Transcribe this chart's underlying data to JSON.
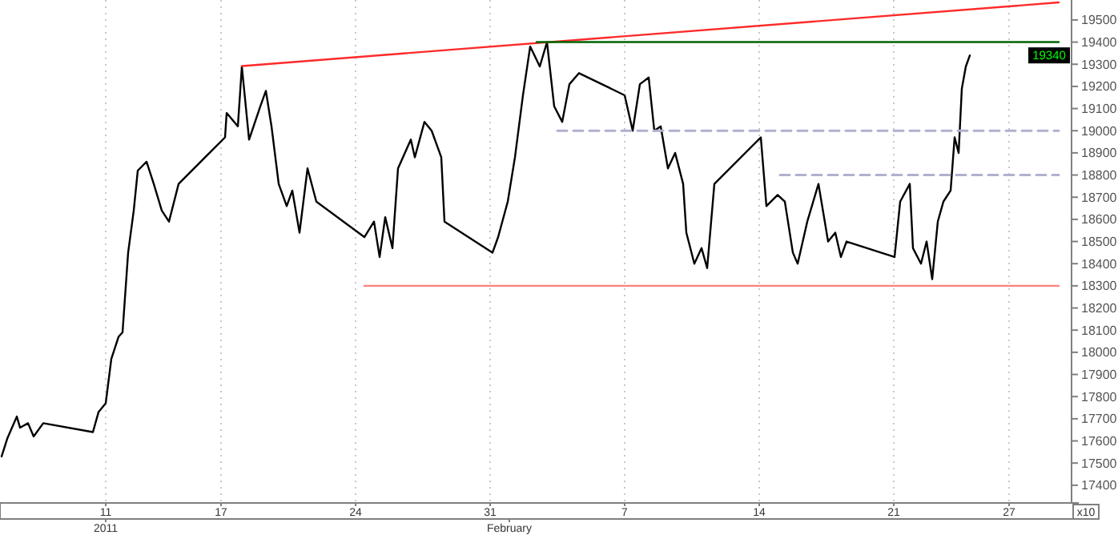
{
  "chart_data": {
    "type": "line",
    "xlim": [
      "2011-01-05T12:00",
      "2011-03-02T06:00"
    ],
    "ylim": [
      17320,
      19590
    ],
    "xticks": [
      {
        "value": "2011-01-11",
        "label": "11"
      },
      {
        "value": "2011-01-17",
        "label": "17"
      },
      {
        "value": "2011-01-24",
        "label": "24"
      },
      {
        "value": "2011-01-31",
        "label": "31"
      },
      {
        "value": "2011-02-07",
        "label": "7"
      },
      {
        "value": "2011-02-14",
        "label": "14"
      },
      {
        "value": "2011-02-21",
        "label": "21"
      },
      {
        "value": "2011-02-27",
        "label": "27"
      }
    ],
    "x2lim": [
      "2011-01-05T12:00",
      "2011-03-02T06:00"
    ],
    "x2ticks": [
      {
        "value": "2011-01-11",
        "label": "2011"
      },
      {
        "value": "2011-02-01",
        "label": "February"
      }
    ],
    "yticks": [
      17400,
      17500,
      17600,
      17700,
      17800,
      17900,
      18000,
      18100,
      18200,
      18300,
      18400,
      18500,
      18600,
      18700,
      18800,
      18900,
      19000,
      19100,
      19200,
      19300,
      19400,
      19500
    ],
    "grid": "x",
    "series": [
      {
        "color": "#000000",
        "x": [
          "2011-01-05T14:00",
          "2011-01-05T21:00",
          "2011-01-06T09:00",
          "2011-01-06T13:00",
          "2011-01-06T23:00",
          "2011-01-07T06:00",
          "2011-01-07T18:00",
          "2011-01-10T08:00",
          "2011-01-10T15:00",
          "2011-01-11T00:00",
          "2011-01-11T07:00",
          "2011-01-11T16:00",
          "2011-01-11T21:00",
          "2011-01-12T04:00",
          "2011-01-12T11:00",
          "2011-01-12T16:00",
          "2011-01-13T03:00",
          "2011-01-13T12:00",
          "2011-01-13T22:00",
          "2011-01-14T07:00",
          "2011-01-14T19:00",
          "2011-01-17T05:00",
          "2011-01-17T07:00",
          "2011-01-17T21:00",
          "2011-01-18T02:00",
          "2011-01-18T11:00",
          "2011-01-19T01:00",
          "2011-01-19T08:00",
          "2011-01-19T15:00",
          "2011-01-20T00:00",
          "2011-01-20T10:00",
          "2011-01-20T17:00",
          "2011-01-21T02:00",
          "2011-01-21T12:00",
          "2011-01-21T23:00",
          "2011-01-24T11:00",
          "2011-01-24T23:00",
          "2011-01-25T06:00",
          "2011-01-25T13:00",
          "2011-01-25T22:00",
          "2011-01-26T05:00",
          "2011-01-26T21:00",
          "2011-01-27T02:00",
          "2011-01-27T14:00",
          "2011-01-27T23:00",
          "2011-01-28T11:00",
          "2011-01-28T15:00",
          "2011-01-31T03:00",
          "2011-01-31T10:00",
          "2011-01-31T22:00",
          "2011-02-01T07:00",
          "2011-02-01T17:00",
          "2011-02-02T02:00",
          "2011-02-02T14:00",
          "2011-02-02T23:00",
          "2011-02-03T08:00",
          "2011-02-03T18:00",
          "2011-02-04T03:00",
          "2011-02-04T15:00",
          "2011-02-07T00:00",
          "2011-02-07T10:00",
          "2011-02-07T19:00",
          "2011-02-08T06:00",
          "2011-02-08T13:00",
          "2011-02-08T21:00",
          "2011-02-09T06:00",
          "2011-02-09T15:00",
          "2011-02-10T01:00",
          "2011-02-10T05:00",
          "2011-02-10T15:00",
          "2011-02-11T00:00",
          "2011-02-11T07:00",
          "2011-02-11T16:00",
          "2011-02-14T02:00",
          "2011-02-14T09:00",
          "2011-02-14T23:00",
          "2011-02-15T08:00",
          "2011-02-15T18:00",
          "2011-02-16T00:00",
          "2011-02-16T12:00",
          "2011-02-17T02:00",
          "2011-02-17T14:00",
          "2011-02-17T23:00",
          "2011-02-18T06:00",
          "2011-02-18T13:00",
          "2011-02-21T01:00",
          "2011-02-21T08:00",
          "2011-02-21T20:00",
          "2011-02-22T00:00",
          "2011-02-22T10:00",
          "2011-02-22T17:00",
          "2011-02-23T00:00",
          "2011-02-23T07:00",
          "2011-02-23T14:00",
          "2011-02-23T23:00",
          "2011-02-24T04:00",
          "2011-02-24T09:00",
          "2011-02-24T13:00",
          "2011-02-24T18:00",
          "2011-02-24T23:00"
        ],
        "values": [
          17530,
          17610,
          17710,
          17660,
          17680,
          17620,
          17680,
          17640,
          17730,
          17770,
          17970,
          18070,
          18090,
          18450,
          18640,
          18820,
          18860,
          18760,
          18640,
          18590,
          18760,
          18970,
          19080,
          19020,
          19290,
          18960,
          19110,
          19180,
          19020,
          18760,
          18660,
          18730,
          18540,
          18830,
          18680,
          18520,
          18590,
          18430,
          18610,
          18470,
          18830,
          18960,
          18880,
          19040,
          19000,
          18880,
          18590,
          18450,
          18520,
          18680,
          18880,
          19160,
          19380,
          19290,
          19400,
          19110,
          19040,
          19210,
          19260,
          19160,
          19000,
          19210,
          19240,
          19000,
          19020,
          18830,
          18900,
          18760,
          18540,
          18400,
          18470,
          18380,
          18760,
          18970,
          18660,
          18710,
          18680,
          18450,
          18400,
          18590,
          18760,
          18500,
          18540,
          18430,
          18500,
          18430,
          18680,
          18760,
          18470,
          18400,
          18500,
          18330,
          18590,
          18680,
          18730,
          18970,
          18900,
          19190,
          19290,
          19340
        ]
      },
      {
        "color": "#ff2a2a",
        "x": [
          "2011-01-18T02:00",
          "2011-03-01T14:00"
        ],
        "values": [
          19292,
          19579
        ]
      },
      {
        "color": "#ff8080",
        "x": [
          "2011-01-24T11:00",
          "2011-03-01T14:00"
        ],
        "values": [
          18300,
          18300
        ]
      },
      {
        "color": "#006400",
        "x": [
          "2011-02-02T10:00",
          "2011-03-01T14:00"
        ],
        "values": [
          19400,
          19400
        ]
      },
      {
        "color": "#b0b0d0",
        "line_style": "dashed",
        "x": [
          "2011-02-03T12:00",
          "2011-03-01T14:00"
        ],
        "values": [
          19000,
          19000
        ]
      },
      {
        "color": "#b0b0d0",
        "line_style": "dashed",
        "x": [
          "2011-02-15T02:00",
          "2011-03-01T14:00"
        ],
        "values": [
          18800,
          18800
        ]
      }
    ],
    "annotations": [
      "19340",
      "x10"
    ]
  }
}
